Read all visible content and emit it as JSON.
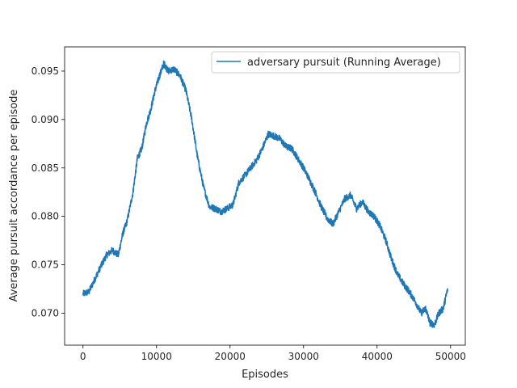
{
  "chart_data": {
    "type": "line",
    "title": "",
    "xlabel": "Episodes",
    "ylabel": "Average pursuit accordance per episode",
    "xlim": [
      -2500,
      52000
    ],
    "ylim": [
      0.0667,
      0.0975
    ],
    "xticks": [
      0,
      10000,
      20000,
      30000,
      40000,
      50000
    ],
    "xtick_labels": [
      "0",
      "10000",
      "20000",
      "30000",
      "40000",
      "50000"
    ],
    "yticks": [
      0.07,
      0.075,
      0.08,
      0.085,
      0.09,
      0.095
    ],
    "ytick_labels": [
      "0.070",
      "0.075",
      "0.080",
      "0.085",
      "0.090",
      "0.095"
    ],
    "grid": false,
    "legend": "top-right",
    "series": [
      {
        "name": "adversary pursuit (Running Average)",
        "color": "#1f77b4",
        "x": [
          0,
          800,
          1600,
          2400,
          3200,
          4000,
          4800,
          5400,
          6000,
          6800,
          7400,
          8000,
          8600,
          9200,
          9800,
          10400,
          11000,
          11600,
          12400,
          13200,
          14000,
          14800,
          15600,
          16400,
          17200,
          18000,
          18800,
          19600,
          20400,
          21200,
          22000,
          22800,
          23600,
          24400,
          25200,
          26000,
          26800,
          27600,
          28400,
          29200,
          30000,
          30800,
          31600,
          32400,
          33200,
          34000,
          34800,
          35600,
          36400,
          37200,
          38000,
          38800,
          39600,
          40400,
          41200,
          42000,
          42800,
          43600,
          44400,
          45200,
          46000,
          46600,
          47200,
          47800,
          48400,
          49000,
          49600
        ],
        "y": [
          0.072,
          0.0722,
          0.0735,
          0.0748,
          0.076,
          0.0765,
          0.076,
          0.0782,
          0.0795,
          0.0825,
          0.086,
          0.087,
          0.0895,
          0.091,
          0.093,
          0.0945,
          0.0958,
          0.095,
          0.0952,
          0.0945,
          0.093,
          0.09,
          0.086,
          0.083,
          0.081,
          0.0808,
          0.0805,
          0.0808,
          0.0812,
          0.0835,
          0.0842,
          0.085,
          0.0858,
          0.087,
          0.0885,
          0.0883,
          0.088,
          0.0872,
          0.087,
          0.086,
          0.085,
          0.0838,
          0.0825,
          0.081,
          0.0798,
          0.0792,
          0.0805,
          0.0818,
          0.0822,
          0.0808,
          0.0815,
          0.0805,
          0.08,
          0.079,
          0.0775,
          0.0755,
          0.074,
          0.073,
          0.0722,
          0.0712,
          0.07,
          0.0705,
          0.069,
          0.0688,
          0.07,
          0.0705,
          0.0725
        ]
      }
    ]
  }
}
